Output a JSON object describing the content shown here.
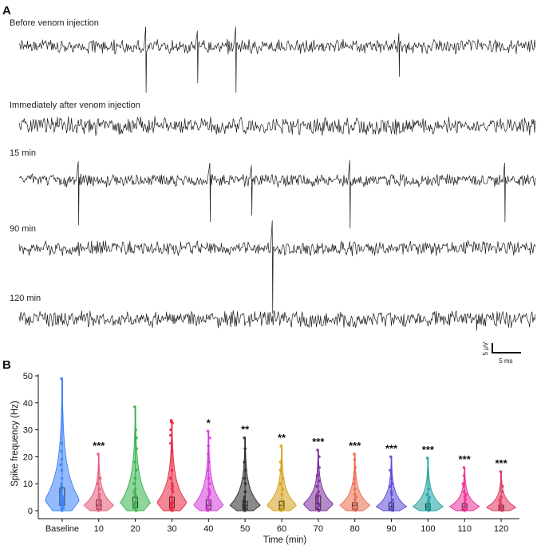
{
  "panel_a": {
    "letter": "A",
    "traces": [
      {
        "label": "Before venom injection",
        "seed": 11,
        "amp": 9,
        "spikes": [
          {
            "t": 0.245,
            "a": 58
          },
          {
            "t": 0.345,
            "a": 46
          },
          {
            "t": 0.42,
            "a": 58
          },
          {
            "t": 0.735,
            "a": 38
          }
        ]
      },
      {
        "label": "Immediately after venom injection",
        "seed": 23,
        "amp": 11,
        "spikes": []
      },
      {
        "label": "15 min",
        "seed": 37,
        "amp": 8,
        "spikes": [
          {
            "t": 0.115,
            "a": 56
          },
          {
            "t": 0.37,
            "a": 52
          },
          {
            "t": 0.45,
            "a": 44
          },
          {
            "t": 0.64,
            "a": 60
          },
          {
            "t": 0.94,
            "a": 52
          }
        ]
      },
      {
        "label": "90 min",
        "seed": 51,
        "amp": 9,
        "spikes": [
          {
            "t": 0.49,
            "a": 82
          }
        ]
      },
      {
        "label": "120 min",
        "seed": 67,
        "amp": 10,
        "spikes": [
          {
            "t": 0.885,
            "a": 14
          }
        ]
      }
    ],
    "scalebar": {
      "y_label": "5 μV",
      "x_label": "5 ms"
    }
  },
  "panel_b": {
    "letter": "B",
    "chart_data": {
      "type": "violin",
      "xlabel": "Time (min)",
      "ylabel": "Spike frequency (Hz)",
      "ylim": [
        0,
        50
      ],
      "yticks": [
        0,
        10,
        20,
        30,
        40,
        50
      ],
      "categories": [
        "Baseline",
        "10",
        "20",
        "30",
        "40",
        "50",
        "60",
        "70",
        "80",
        "90",
        "100",
        "110",
        "120"
      ],
      "max": [
        49,
        21,
        38.5,
        33.5,
        29.5,
        27,
        24,
        22.5,
        21,
        20,
        19.5,
        16,
        14.5
      ],
      "q1": [
        2,
        0.5,
        1,
        1,
        0.5,
        0.5,
        0.5,
        0.5,
        0.5,
        0.3,
        0.3,
        0.3,
        0.2
      ],
      "median": [
        4,
        2,
        3,
        3,
        2,
        2,
        2,
        2.5,
        2,
        1.5,
        1.5,
        1.5,
        1
      ],
      "q3": [
        8.5,
        4,
        5,
        5,
        4,
        3.5,
        3.5,
        5.5,
        3,
        3,
        2.5,
        2.5,
        2
      ],
      "significance": [
        "",
        "***",
        "",
        "",
        "*",
        "**",
        "**",
        "***",
        "***",
        "***",
        "***",
        "***",
        "***"
      ],
      "colors": [
        "#3b82f6",
        "#e35a7a",
        "#34b24a",
        "#e8263f",
        "#d43bd8",
        "#2a2a2a",
        "#d4a017",
        "#7a2a9a",
        "#ec6a4a",
        "#5b4ad8",
        "#1ea1a1",
        "#ec2f97",
        "#e0355e"
      ],
      "points": [
        [
          49,
          25,
          22,
          19,
          17,
          15,
          12,
          10,
          9,
          8,
          8,
          7,
          6,
          6,
          5,
          5,
          4,
          4,
          4,
          3,
          3,
          3,
          2,
          2,
          2,
          1,
          1,
          0.5,
          0
        ],
        [
          21,
          12,
          10,
          8,
          6,
          5,
          4,
          3,
          3,
          2,
          2,
          1,
          1,
          0.5,
          0
        ],
        [
          38.5,
          30,
          27,
          23,
          18,
          15,
          12,
          10,
          8,
          7,
          6,
          5,
          4,
          3,
          3,
          2,
          2,
          1,
          1,
          0
        ],
        [
          33.5,
          33,
          32.5,
          30,
          28,
          25,
          22,
          15,
          12,
          10,
          9,
          8,
          7,
          5,
          4,
          3,
          3,
          2,
          2,
          1,
          0.5,
          0
        ],
        [
          29.5,
          27,
          24,
          21,
          18,
          15,
          12,
          10,
          8,
          7,
          6,
          5,
          4,
          3,
          2,
          1,
          0.5,
          0
        ],
        [
          27,
          23,
          18,
          15,
          12,
          10,
          7,
          5,
          4,
          3,
          2,
          1,
          1,
          0
        ],
        [
          24,
          18,
          15,
          12,
          10,
          8,
          6,
          4,
          3,
          2,
          1,
          0.5,
          0
        ],
        [
          22.5,
          20,
          16,
          13,
          11,
          9,
          7,
          6,
          5,
          4,
          3,
          2,
          1,
          0
        ],
        [
          21,
          19,
          16,
          14,
          12,
          10,
          8,
          6,
          5,
          4,
          3,
          2,
          1,
          0.5,
          0
        ],
        [
          20,
          15,
          12,
          10,
          9,
          7,
          6,
          4,
          3,
          2,
          1,
          0.5,
          0
        ],
        [
          19.5,
          8,
          6,
          5,
          4,
          3,
          3,
          2,
          2,
          1,
          1,
          0.5,
          0
        ],
        [
          16,
          13,
          10,
          9,
          7,
          6,
          5,
          4,
          3,
          2,
          1,
          0.5,
          0
        ],
        [
          14.5,
          9,
          7,
          5,
          4,
          3,
          2,
          2,
          1,
          1,
          0.5,
          0
        ]
      ]
    }
  }
}
